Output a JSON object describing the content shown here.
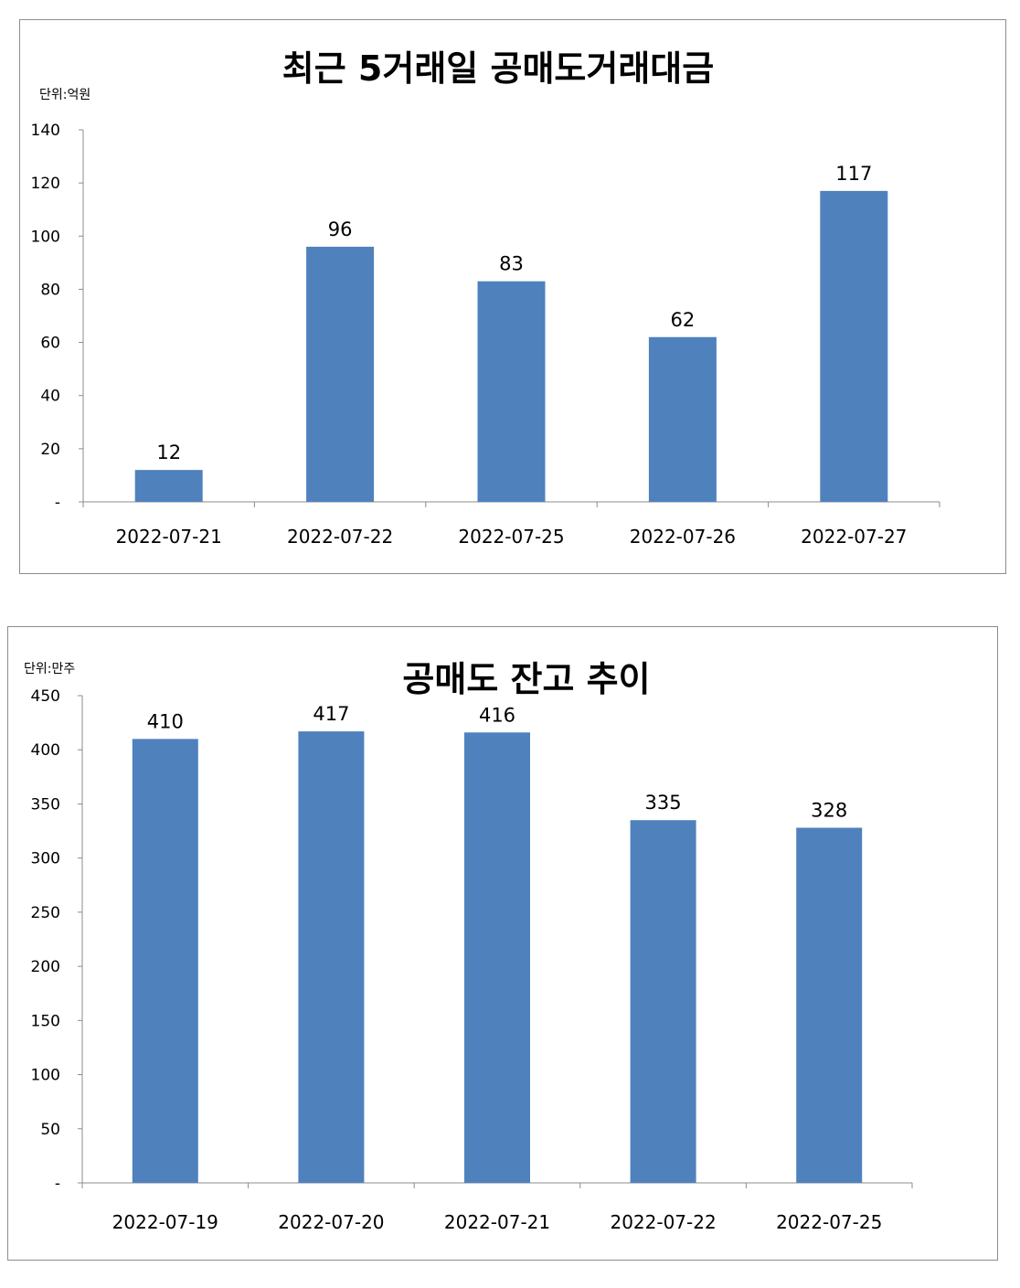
{
  "chart_data": [
    {
      "type": "bar",
      "title": "최근 5거래일 공매도거래대금",
      "unit_label": "단위:억원",
      "categories": [
        "2022-07-21",
        "2022-07-22",
        "2022-07-25",
        "2022-07-26",
        "2022-07-27"
      ],
      "values": [
        12,
        96,
        83,
        62,
        117
      ],
      "data_labels": [
        "12",
        "96",
        "83",
        "62",
        "117"
      ],
      "ylim": [
        0,
        140
      ],
      "yticks": [
        0,
        20,
        40,
        60,
        80,
        100,
        120,
        140
      ],
      "ytick_labels": [
        "-",
        "20",
        "40",
        "60",
        "80",
        "100",
        "120",
        "140"
      ],
      "bar_color": "#4f81bd",
      "grid": false,
      "legend": "none"
    },
    {
      "type": "bar",
      "title": "공매도 잔고 추이",
      "unit_label": "단위:만주",
      "categories": [
        "2022-07-19",
        "2022-07-20",
        "2022-07-21",
        "2022-07-22",
        "2022-07-25"
      ],
      "values": [
        410,
        417,
        416,
        335,
        328
      ],
      "data_labels": [
        "410",
        "417",
        "416",
        "335",
        "328"
      ],
      "ylim": [
        0,
        450
      ],
      "yticks": [
        0,
        50,
        100,
        150,
        200,
        250,
        300,
        350,
        400,
        450
      ],
      "ytick_labels": [
        "-",
        "50",
        "100",
        "150",
        "200",
        "250",
        "300",
        "350",
        "400",
        "450"
      ],
      "bar_color": "#4f81bd",
      "grid": false,
      "legend": "none"
    }
  ]
}
